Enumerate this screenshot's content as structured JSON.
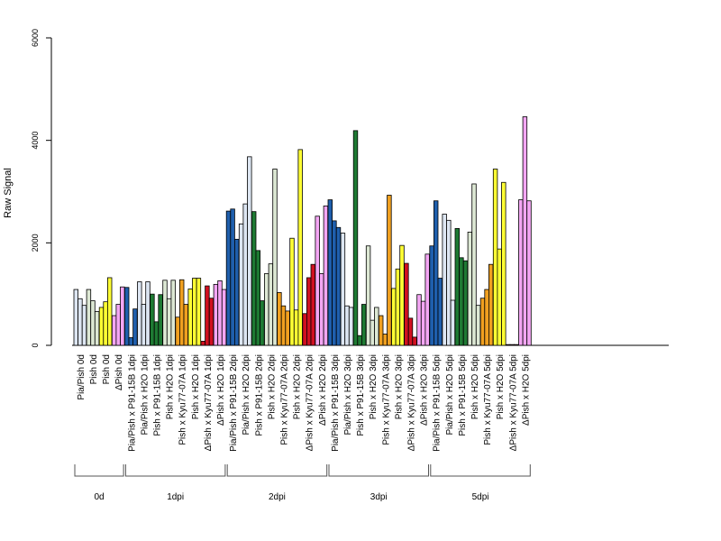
{
  "chart_data": {
    "type": "bar",
    "title": "",
    "xlabel": "",
    "ylabel": "Raw Signal",
    "ylim": [
      0,
      6000
    ],
    "yticks": [
      0,
      2000,
      4000,
      6000
    ],
    "grid": false,
    "legend": "none",
    "bars_per_sample": 3,
    "categories": [
      "Pia/Pish 0d",
      "Pish 0d",
      "Pish 0d",
      "ΔPish 0d",
      "Pia/Pish x P91-15B 1dpi",
      "Pia/Pish x H2O 1dpi",
      "Pish x P91-15B 1dpi",
      "Pish x H2O 1dpi",
      "Pish x Kyu77-07A 1dpi",
      "Pish x H2O 1dpi",
      "ΔPish x Kyu77-07A 1dpi",
      "ΔPish x H2O 1dpi",
      "Pia/Pish x P91-15B 2dpi",
      "Pia/Pish x H2O 2dpi",
      "Pish x P91-15B 2dpi",
      "Pish x H2O 2dpi",
      "Pish x Kyu77-07A 2dpi",
      "Pish x H2O 2dpi",
      "ΔPish x Kyu77-07A 2dpi",
      "ΔPish x H2O 2dpi",
      "Pia/Pish x P91-15B 3dpi",
      "Pia/Pish x H2O 3dpi",
      "Pish x P91-15B 3dpi",
      "Pish x H2O 3dpi",
      "Pish x Kyu77-07A 3dpi",
      "Pish x H2O 3dpi",
      "ΔPish x Kyu77-07A 3dpi",
      "ΔPish x H2O 3dpi",
      "Pia/Pish x P91-15B 5dpi",
      "Pia/Pish x H2O 5dpi",
      "Pish x P91-15B 5dpi",
      "Pish x H2O 5dpi",
      "Pish x Kyu77-07A 5dpi",
      "Pish x H2O 5dpi",
      "ΔPish x Kyu77-07A 5dpi",
      "ΔPish x H2O 5dpi"
    ],
    "values": [
      [
        1090,
        910,
        780
      ],
      [
        1090,
        870,
        660
      ],
      [
        740,
        850,
        1320
      ],
      [
        580,
        800,
        1140
      ],
      [
        1130,
        150,
        710
      ],
      [
        1240,
        800,
        1240
      ],
      [
        1000,
        460,
        990
      ],
      [
        1270,
        910,
        1270
      ],
      [
        550,
        1280,
        800
      ],
      [
        1100,
        1310,
        1310
      ],
      [
        80,
        1160,
        920
      ],
      [
        1190,
        1260,
        1090
      ],
      [
        2620,
        2660,
        2070
      ],
      [
        2370,
        2760,
        3680
      ],
      [
        2610,
        1850,
        870
      ],
      [
        1400,
        1590,
        3440
      ],
      [
        1030,
        770,
        670
      ],
      [
        2090,
        690,
        3820
      ],
      [
        620,
        1320,
        1580
      ],
      [
        2520,
        1400,
        2720
      ],
      [
        2840,
        2430,
        2300
      ],
      [
        2190,
        770,
        740
      ],
      [
        4190,
        190,
        800
      ],
      [
        1940,
        490,
        740
      ],
      [
        580,
        220,
        2930
      ],
      [
        1110,
        1490,
        1950
      ],
      [
        1600,
        530,
        160
      ],
      [
        990,
        860,
        1780
      ],
      [
        1940,
        2820,
        1310
      ],
      [
        2560,
        2440,
        880
      ],
      [
        2280,
        1710,
        1650
      ],
      [
        2210,
        3150,
        780
      ],
      [
        920,
        1090,
        1580
      ],
      [
        3440,
        1880,
        3180
      ],
      [
        15,
        15,
        15
      ],
      [
        2840,
        4460,
        2820
      ]
    ],
    "bar_colors": [
      "#dde6f2",
      "#dde8d4",
      "#ffff33",
      "#f4a6f4",
      "#1f5fad",
      "#dde6f2",
      "#1e7a33",
      "#dde8d4",
      "#f0a020",
      "#ffff33",
      "#d01020",
      "#f4a6f4",
      "#1f5fad",
      "#dde6f2",
      "#1e7a33",
      "#dde8d4",
      "#f0a020",
      "#ffff33",
      "#d01020",
      "#f4a6f4",
      "#1f5fad",
      "#dde6f2",
      "#1e7a33",
      "#dde8d4",
      "#f0a020",
      "#ffff33",
      "#d01020",
      "#f4a6f4",
      "#1f5fad",
      "#dde6f2",
      "#1e7a33",
      "#dde8d4",
      "#f0a020",
      "#ffff33",
      "#d01020",
      "#f4a6f4"
    ],
    "groups": [
      {
        "label": "0d",
        "samples": 4
      },
      {
        "label": "1dpi",
        "samples": 8
      },
      {
        "label": "2dpi",
        "samples": 8
      },
      {
        "label": "3dpi",
        "samples": 8
      },
      {
        "label": "5dpi",
        "samples": 8
      }
    ]
  }
}
